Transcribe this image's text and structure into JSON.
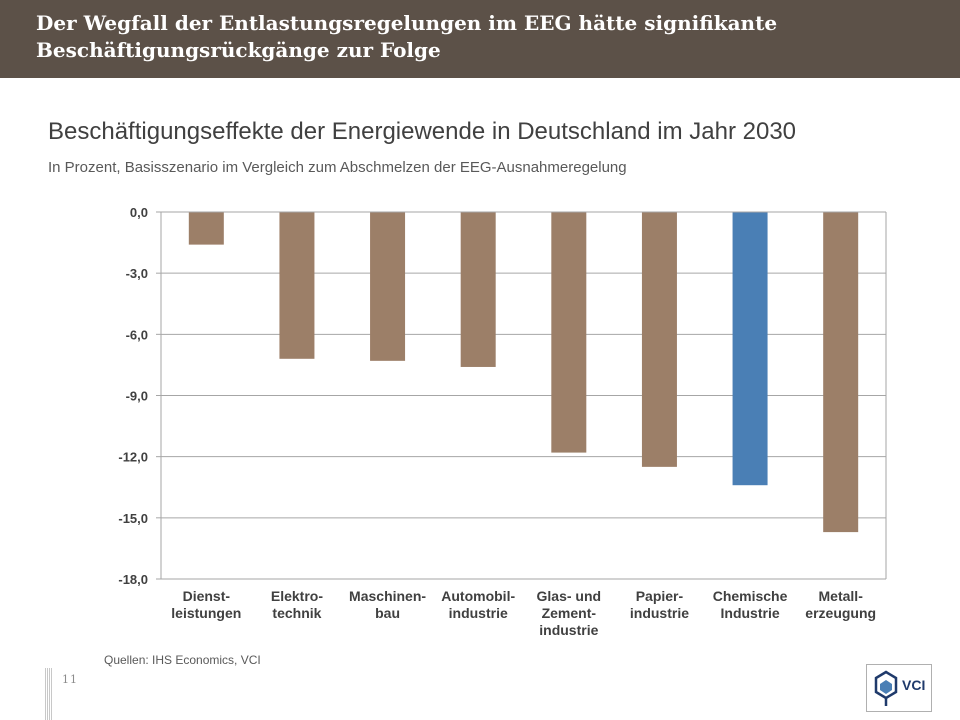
{
  "header": {
    "title": "Der Wegfall der Entlastungsregelungen im EEG hätte signifikante Beschäftigungsrückgänge zur Folge"
  },
  "chart_data": {
    "type": "bar",
    "title": "Beschäftigungseffekte der Energiewende in Deutschland im Jahr 2030",
    "subtitle": "In Prozent, Basisszenario im Vergleich zum Abschmelzen der EEG-Ausnahmeregelung",
    "categories": [
      [
        "Dienst-",
        "leistungen"
      ],
      [
        "Elektro-",
        "technik"
      ],
      [
        "Maschinen-",
        "bau"
      ],
      [
        "Automobil-",
        "industrie"
      ],
      [
        "Glas- und",
        "Zement-",
        "industrie"
      ],
      [
        "Papier-",
        "industrie"
      ],
      [
        "Chemische",
        "Industrie"
      ],
      [
        "Metall-",
        "erzeugung"
      ]
    ],
    "values": [
      -1.6,
      -7.2,
      -7.3,
      -7.6,
      -11.8,
      -12.5,
      -13.4,
      -15.7
    ],
    "bar_colors": [
      "#9c7f68",
      "#9c7f68",
      "#9c7f68",
      "#9c7f68",
      "#9c7f68",
      "#9c7f68",
      "#4a7fb5",
      "#9c7f68"
    ],
    "yticks": [
      "0,0",
      "-3,0",
      "-6,0",
      "-9,0",
      "-12,0",
      "-15,0",
      "-18,0"
    ],
    "ylim": [
      -18,
      0
    ],
    "grid": true,
    "xlabel": "",
    "ylabel": ""
  },
  "source": "Quellen: IHS Economics, VCI",
  "page_number": "11",
  "logo": {
    "text": "VCI",
    "brand_color": "#1f3a6b"
  }
}
